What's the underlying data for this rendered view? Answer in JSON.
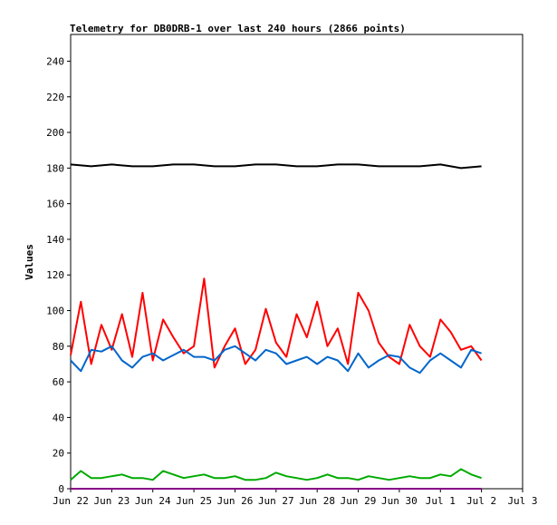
{
  "chart_data": {
    "type": "line",
    "title": "Telemetry for DB0DRB-1 over last 240 hours (2866 points)",
    "xlabel": "",
    "ylabel": "Values",
    "ylim": [
      0,
      255
    ],
    "yticks": [
      0,
      20,
      40,
      60,
      80,
      100,
      120,
      140,
      160,
      180,
      200,
      220,
      240
    ],
    "xlim_hours": [
      0,
      264
    ],
    "xticks": [
      "Jun 22",
      "Jun 23",
      "Jun 24",
      "Jun 25",
      "Jun 26",
      "Jun 27",
      "Jun 28",
      "Jun 29",
      "Jun 30",
      "Jul 1",
      "Jul 2",
      "Jul 3"
    ],
    "grid": false,
    "legend": "none",
    "series": [
      {
        "color": "#000000",
        "x": [
          0,
          12,
          24,
          36,
          48,
          60,
          72,
          84,
          96,
          108,
          120,
          132,
          144,
          156,
          168,
          180,
          192,
          204,
          216,
          228,
          240
        ],
        "values": [
          182,
          181,
          182,
          181,
          181,
          182,
          182,
          181,
          181,
          182,
          182,
          181,
          181,
          182,
          182,
          181,
          181,
          181,
          182,
          180,
          181
        ]
      },
      {
        "color": "#ff0000",
        "x": [
          0,
          6,
          12,
          18,
          24,
          30,
          36,
          42,
          48,
          54,
          60,
          66,
          72,
          78,
          84,
          90,
          96,
          102,
          108,
          114,
          120,
          126,
          132,
          138,
          144,
          150,
          156,
          162,
          168,
          174,
          180,
          186,
          192,
          198,
          204,
          210,
          216,
          222,
          228,
          234,
          240
        ],
        "values": [
          75,
          105,
          70,
          92,
          78,
          98,
          74,
          110,
          72,
          95,
          85,
          76,
          80,
          118,
          68,
          80,
          90,
          70,
          78,
          101,
          82,
          74,
          98,
          85,
          105,
          80,
          90,
          70,
          110,
          100,
          82,
          74,
          70,
          92,
          80,
          74,
          95,
          88,
          78,
          80,
          72
        ]
      },
      {
        "color": "#0066cc",
        "x": [
          0,
          6,
          12,
          18,
          24,
          30,
          36,
          42,
          48,
          54,
          60,
          66,
          72,
          78,
          84,
          90,
          96,
          102,
          108,
          114,
          120,
          126,
          132,
          138,
          144,
          150,
          156,
          162,
          168,
          174,
          180,
          186,
          192,
          198,
          204,
          210,
          216,
          222,
          228,
          234,
          240
        ],
        "values": [
          72,
          66,
          78,
          77,
          80,
          72,
          68,
          74,
          76,
          72,
          75,
          78,
          74,
          74,
          72,
          78,
          80,
          76,
          72,
          78,
          76,
          70,
          72,
          74,
          70,
          74,
          72,
          66,
          76,
          68,
          72,
          75,
          74,
          68,
          65,
          72,
          76,
          72,
          68,
          78,
          76
        ]
      },
      {
        "color": "#00aa00",
        "x": [
          0,
          6,
          12,
          18,
          24,
          30,
          36,
          42,
          48,
          54,
          60,
          66,
          72,
          78,
          84,
          90,
          96,
          102,
          108,
          114,
          120,
          126,
          132,
          138,
          144,
          150,
          156,
          162,
          168,
          174,
          180,
          186,
          192,
          198,
          204,
          210,
          216,
          222,
          228,
          234,
          240
        ],
        "values": [
          5,
          10,
          6,
          6,
          7,
          8,
          6,
          6,
          5,
          10,
          8,
          6,
          7,
          8,
          6,
          6,
          7,
          5,
          5,
          6,
          9,
          7,
          6,
          5,
          6,
          8,
          6,
          6,
          5,
          7,
          6,
          5,
          6,
          7,
          6,
          6,
          8,
          7,
          11,
          8,
          6
        ]
      },
      {
        "color": "#880088",
        "x": [
          0,
          240
        ],
        "values": [
          0,
          0
        ]
      }
    ]
  }
}
